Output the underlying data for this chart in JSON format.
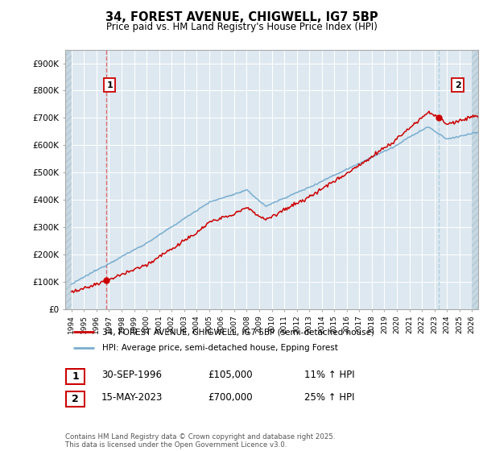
{
  "title": "34, FOREST AVENUE, CHIGWELL, IG7 5BP",
  "subtitle": "Price paid vs. HM Land Registry's House Price Index (HPI)",
  "ylabel_ticks": [
    "£0",
    "£100K",
    "£200K",
    "£300K",
    "£400K",
    "£500K",
    "£600K",
    "£700K",
    "£800K",
    "£900K"
  ],
  "ylim": [
    0,
    950000
  ],
  "xlim_start": 1993.5,
  "xlim_end": 2026.5,
  "sale1_date": 1996.75,
  "sale1_price": 105000,
  "sale1_label": "1",
  "sale2_date": 2023.37,
  "sale2_price": 700000,
  "sale2_label": "2",
  "legend_line1": "34, FOREST AVENUE, CHIGWELL, IG7 5BP (semi-detached house)",
  "legend_line2": "HPI: Average price, semi-detached house, Epping Forest",
  "table_row1": [
    "1",
    "30-SEP-1996",
    "£105,000",
    "11% ↑ HPI"
  ],
  "table_row2": [
    "2",
    "15-MAY-2023",
    "£700,000",
    "25% ↑ HPI"
  ],
  "footnote": "Contains HM Land Registry data © Crown copyright and database right 2025.\nThis data is licensed under the Open Government Licence v3.0.",
  "line_color_red": "#cc0000",
  "line_color_blue": "#7aadcf",
  "vline_color_red": "#e06060",
  "vline_color_blue": "#aaccdd",
  "bg_color": "#dde8f0",
  "grid_color": "#ffffff",
  "hatch_color": "#c8d8e0"
}
